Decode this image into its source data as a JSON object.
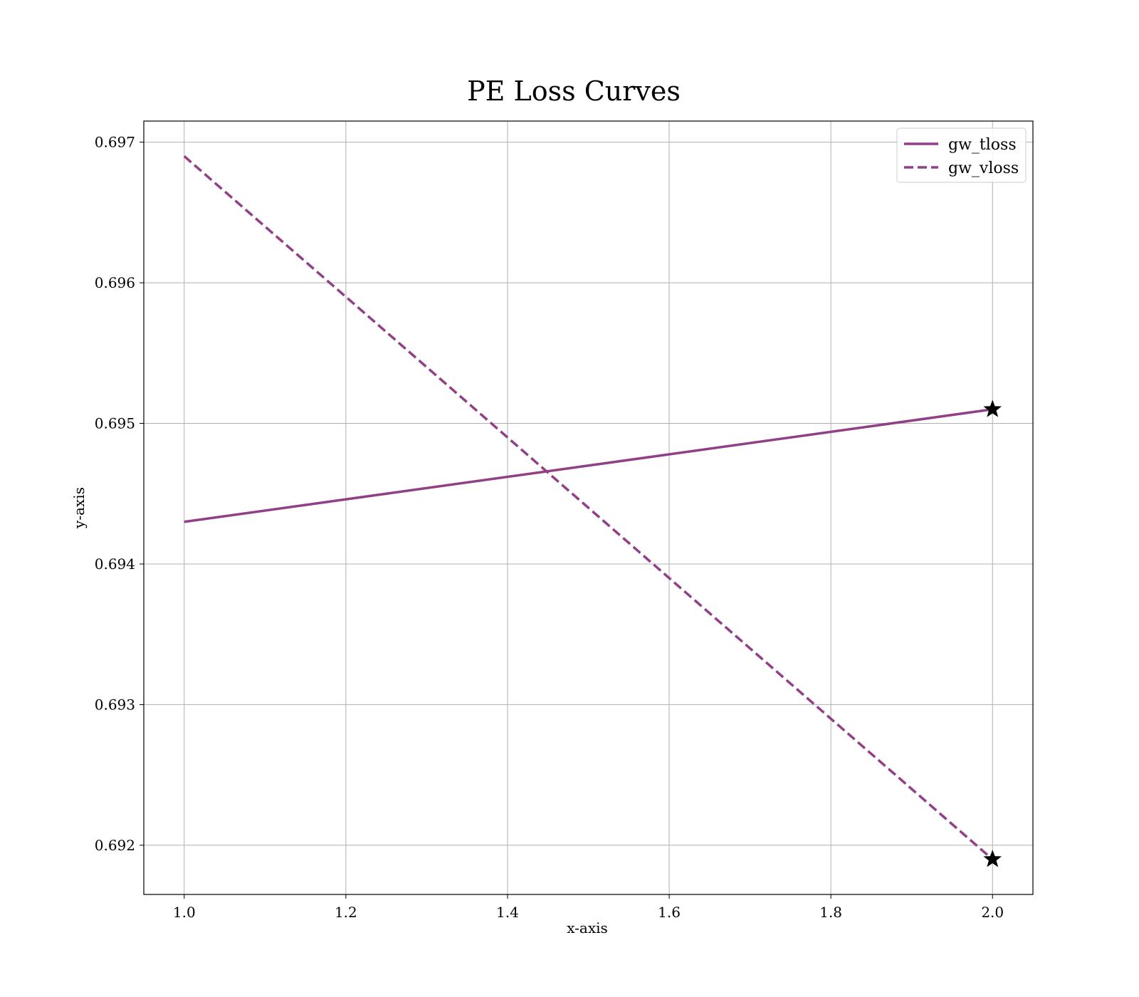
{
  "chart_data": {
    "type": "line",
    "title": "PE Loss Curves",
    "xlabel": "x-axis",
    "ylabel": "y-axis",
    "xlim": [
      0.95,
      2.05
    ],
    "ylim": [
      0.69165,
      0.69715
    ],
    "grid": true,
    "legend_position": "top-right",
    "x_ticks": [
      1.0,
      1.2,
      1.4,
      1.6,
      1.8,
      2.0
    ],
    "x_tick_labels": [
      "1.0",
      "1.2",
      "1.4",
      "1.6",
      "1.8",
      "2.0"
    ],
    "y_ticks": [
      0.692,
      0.693,
      0.694,
      0.695,
      0.696,
      0.697
    ],
    "y_tick_labels": [
      "0.692",
      "0.693",
      "0.694",
      "0.695",
      "0.696",
      "0.697"
    ],
    "series": [
      {
        "name": "gw_tloss",
        "x": [
          1.0,
          2.0
        ],
        "y": [
          0.6943,
          0.6951
        ],
        "color": "#913f87",
        "style": "solid",
        "end_marker": "star"
      },
      {
        "name": "gw_vloss",
        "x": [
          1.0,
          2.0
        ],
        "y": [
          0.6969,
          0.6919
        ],
        "color": "#913f87",
        "style": "dashed",
        "end_marker": "star"
      }
    ]
  }
}
